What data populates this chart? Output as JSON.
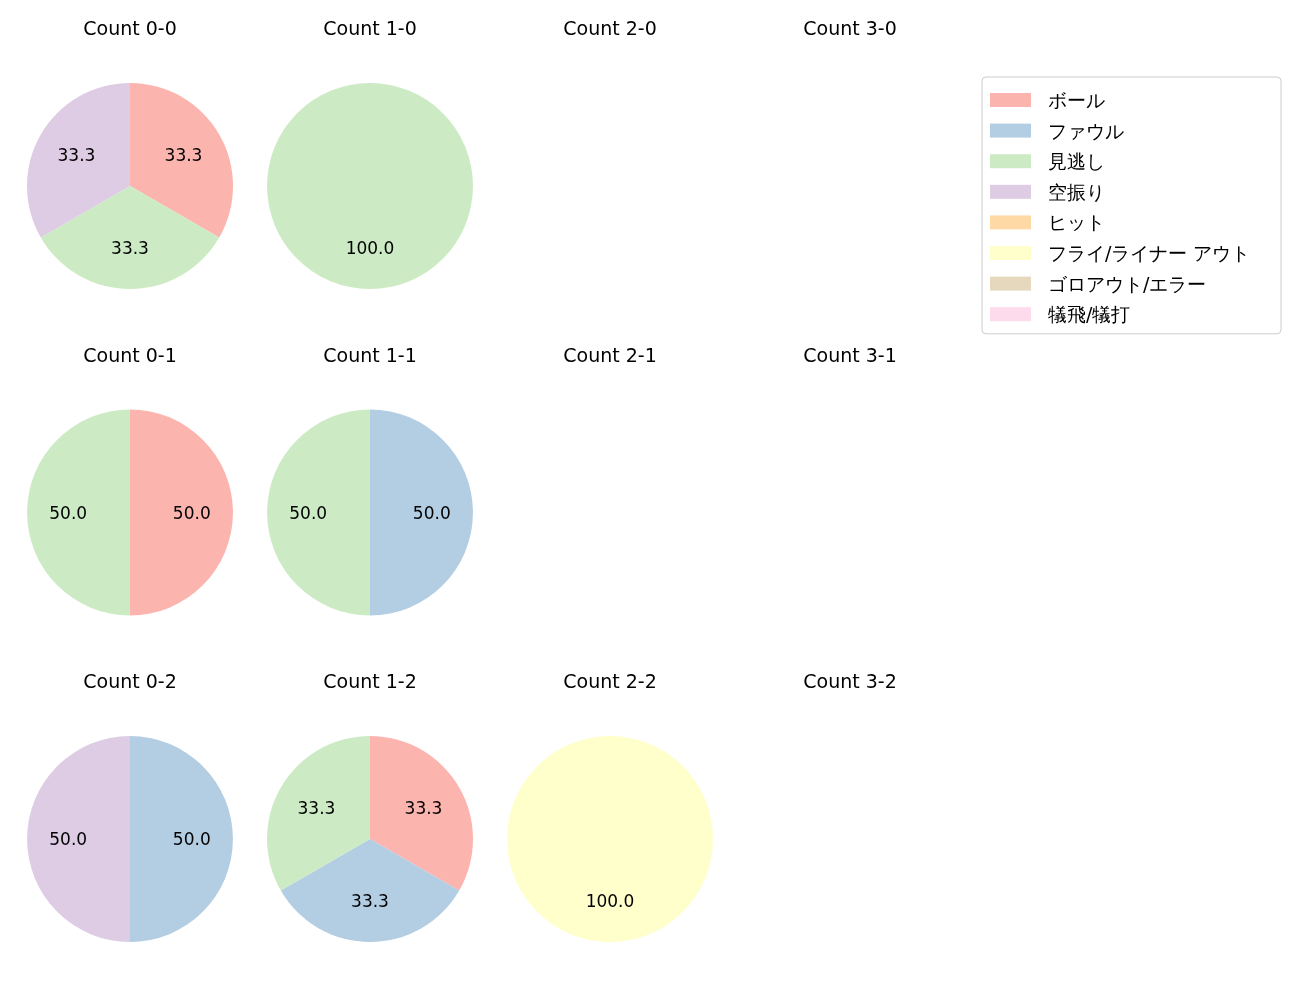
{
  "chart_data": [
    {
      "type": "pie",
      "title": "Count 0-0",
      "legend": "right",
      "categories": [
        "ボール",
        "ファウル",
        "見逃し",
        "空振り",
        "ヒット",
        "フライ/ライナー アウト",
        "ゴロアウト/エラー",
        "犠飛/犠打"
      ],
      "values": [
        33.3,
        0,
        33.3,
        33.3,
        0,
        0,
        0,
        0
      ],
      "value_labels": [
        "33.3",
        null,
        "33.3",
        "33.3",
        null,
        null,
        null,
        null
      ],
      "colors": [
        "#fbb4ae",
        "#b3cde3",
        "#ccebc5",
        "#decbe4",
        "#fed9a6",
        "#ffffcc",
        "#e5d8bd",
        "#fddaec"
      ]
    },
    {
      "type": "pie",
      "title": "Count 1-0",
      "categories": [
        null
      ],
      "values": [
        100
      ],
      "value_labels": [
        "100.0"
      ],
      "colors": [
        "#ccebc5"
      ]
    },
    {
      "type": "pie",
      "title": "Count 2-0"
    },
    {
      "type": "pie",
      "title": "Count 3-0"
    },
    {
      "type": "pie",
      "title": "Count 0-1",
      "categories": [
        null,
        null
      ],
      "values": [
        50,
        50
      ],
      "value_labels": [
        "50.0",
        "50.0"
      ],
      "colors": [
        "#fbb4ae",
        "#ccebc5"
      ]
    },
    {
      "type": "pie",
      "title": "Count 1-1",
      "categories": [
        null,
        null
      ],
      "values": [
        50,
        50
      ],
      "value_labels": [
        "50.0",
        "50.0"
      ],
      "colors": [
        "#b3cde3",
        "#ccebc5"
      ]
    },
    {
      "type": "pie",
      "title": "Count 2-1"
    },
    {
      "type": "pie",
      "title": "Count 3-1"
    },
    {
      "type": "pie",
      "title": "Count 0-2",
      "categories": [
        null,
        null
      ],
      "values": [
        50,
        50
      ],
      "value_labels": [
        "50.0",
        "50.0"
      ],
      "colors": [
        "#b3cde3",
        "#decbe4"
      ]
    },
    {
      "type": "pie",
      "title": "Count 1-2",
      "categories": [
        null,
        null,
        null
      ],
      "values": [
        33.3,
        33.3,
        33.3
      ],
      "value_labels": [
        "33.3",
        "33.3",
        "33.3"
      ],
      "colors": [
        "#fbb4ae",
        "#b3cde3",
        "#ccebc5"
      ]
    },
    {
      "type": "pie",
      "title": "Count 2-2",
      "categories": [
        null
      ],
      "values": [
        100
      ],
      "value_labels": [
        "100.0"
      ],
      "colors": [
        "#ffffcc"
      ]
    },
    {
      "type": "pie",
      "title": "Count 3-2"
    }
  ]
}
